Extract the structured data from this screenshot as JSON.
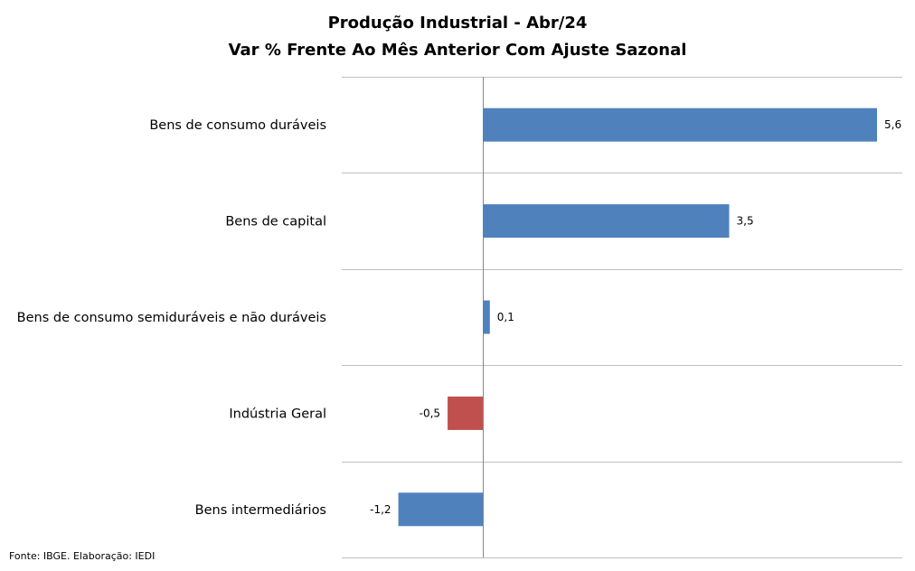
{
  "chart_data": {
    "type": "bar",
    "orientation": "horizontal",
    "title": "Produção Industrial - Abr/24",
    "subtitle": "Var % Frente Ao Mês Anterior Com Ajuste Sazonal",
    "categories": [
      "Bens de consumo duráveis",
      "Bens de capital",
      "Bens de consumo semiduráveis e não duráveis",
      "Indústria Geral",
      "Bens intermediários"
    ],
    "values": [
      5.6,
      3.5,
      0.1,
      -0.5,
      -1.2
    ],
    "data_labels": [
      "5,6",
      "3,5",
      "0,1",
      "-0,5",
      "-1,2"
    ],
    "bar_colors": [
      "#4f81bd",
      "#4f81bd",
      "#4f81bd",
      "#c0504d",
      "#4f81bd"
    ],
    "xlim": [
      -2,
      6
    ],
    "grid": true,
    "legend": "none"
  },
  "source": "Fonte: IBGE. Elaboração: IEDI",
  "colors": {
    "primary_bar": "#4f81bd",
    "highlight_bar": "#c0504d",
    "gridline": "#bfbfbf"
  }
}
